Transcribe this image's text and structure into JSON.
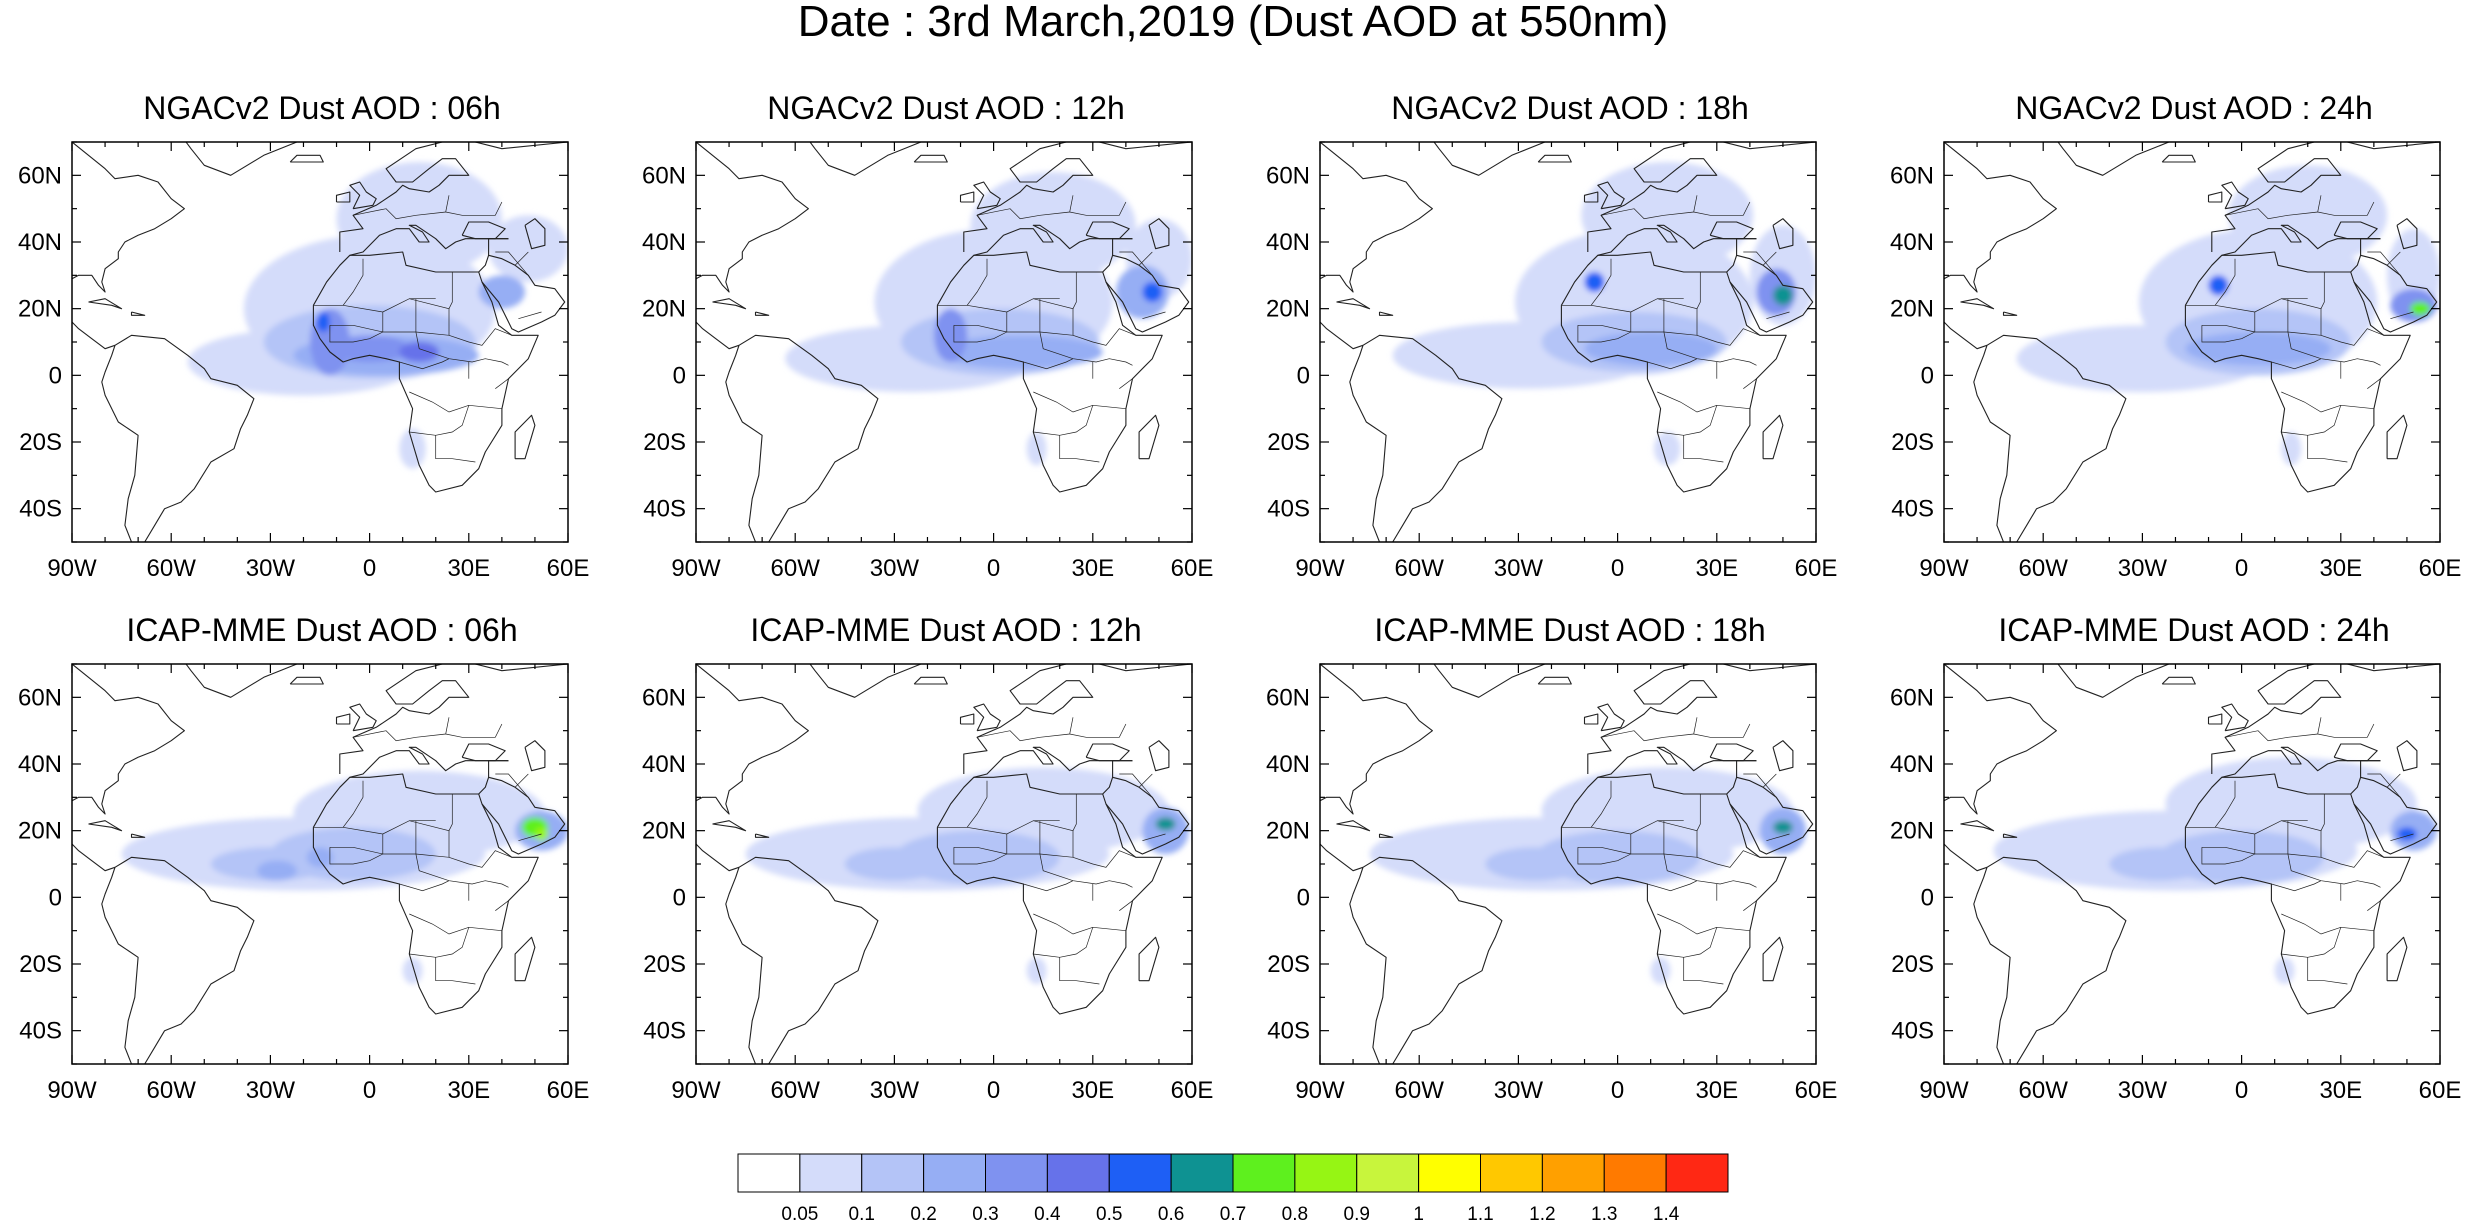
{
  "title": "Date : 3rd March,2019 (Dust AOD at 550nm)",
  "colors": {
    "land_outline": "#222222",
    "frame": "#000000"
  },
  "panels": [
    {
      "title": "NGACv2 Dust AOD : 06h",
      "model": "NGACv2",
      "hour": "06h",
      "plumes": [
        {
          "lon": -20,
          "lat": 4,
          "rx": 35,
          "ry": 10,
          "level": 1
        },
        {
          "lon": 0,
          "lat": 20,
          "rx": 38,
          "ry": 22,
          "level": 1
        },
        {
          "lon": 15,
          "lat": 47,
          "rx": 25,
          "ry": 17,
          "level": 1
        },
        {
          "lon": 48,
          "lat": 38,
          "rx": 12,
          "ry": 10,
          "level": 1
        },
        {
          "lon": -25,
          "lat": 11,
          "rx": 10,
          "ry": 4,
          "level": 1
        },
        {
          "lon": 0,
          "lat": 10,
          "rx": 32,
          "ry": 11,
          "level": 2
        },
        {
          "lon": 5,
          "lat": 6,
          "rx": 28,
          "ry": 6,
          "level": 3
        },
        {
          "lon": -12,
          "lat": 10,
          "rx": 6,
          "ry": 10,
          "level": 4
        },
        {
          "lon": 0,
          "lat": 8,
          "rx": 12,
          "ry": 4,
          "level": 4
        },
        {
          "lon": 15,
          "lat": 7,
          "rx": 6,
          "ry": 3,
          "level": 5
        },
        {
          "lon": -14,
          "lat": 16,
          "rx": 2,
          "ry": 3,
          "level": 6
        },
        {
          "lon": 40,
          "lat": 25,
          "rx": 7,
          "ry": 5,
          "level": 3
        },
        {
          "lon": 13,
          "lat": -22,
          "rx": 4,
          "ry": 6,
          "level": 1
        }
      ]
    },
    {
      "title": "NGACv2 Dust AOD : 12h",
      "model": "NGACv2",
      "hour": "12h",
      "plumes": [
        {
          "lon": -25,
          "lat": 5,
          "rx": 38,
          "ry": 10,
          "level": 1
        },
        {
          "lon": 0,
          "lat": 22,
          "rx": 36,
          "ry": 22,
          "level": 1
        },
        {
          "lon": 18,
          "lat": 45,
          "rx": 25,
          "ry": 16,
          "level": 1
        },
        {
          "lon": 50,
          "lat": 35,
          "rx": 10,
          "ry": 12,
          "level": 1
        },
        {
          "lon": 2,
          "lat": 10,
          "rx": 30,
          "ry": 10,
          "level": 2
        },
        {
          "lon": 8,
          "lat": 7,
          "rx": 25,
          "ry": 5,
          "level": 3
        },
        {
          "lon": -13,
          "lat": 12,
          "rx": 5,
          "ry": 8,
          "level": 4
        },
        {
          "lon": 45,
          "lat": 25,
          "rx": 8,
          "ry": 8,
          "level": 3
        },
        {
          "lon": 48,
          "lat": 25,
          "rx": 3,
          "ry": 3,
          "level": 6
        },
        {
          "lon": 13,
          "lat": -22,
          "rx": 3,
          "ry": 5,
          "level": 1
        }
      ]
    },
    {
      "title": "NGACv2 Dust AOD : 18h",
      "model": "NGACv2",
      "hour": "18h",
      "plumes": [
        {
          "lon": -28,
          "lat": 6,
          "rx": 40,
          "ry": 10,
          "level": 1
        },
        {
          "lon": 5,
          "lat": 22,
          "rx": 36,
          "ry": 22,
          "level": 1
        },
        {
          "lon": 15,
          "lat": 48,
          "rx": 26,
          "ry": 16,
          "level": 1
        },
        {
          "lon": 50,
          "lat": 30,
          "rx": 10,
          "ry": 15,
          "level": 1
        },
        {
          "lon": 5,
          "lat": 10,
          "rx": 28,
          "ry": 9,
          "level": 2
        },
        {
          "lon": 10,
          "lat": 8,
          "rx": 20,
          "ry": 5,
          "level": 3
        },
        {
          "lon": -7,
          "lat": 28,
          "rx": 3,
          "ry": 3,
          "level": 6
        },
        {
          "lon": 48,
          "lat": 25,
          "rx": 6,
          "ry": 7,
          "level": 4
        },
        {
          "lon": 50,
          "lat": 24,
          "rx": 3,
          "ry": 3,
          "level": 7
        },
        {
          "lon": 15,
          "lat": -22,
          "rx": 4,
          "ry": 5,
          "level": 1
        }
      ]
    },
    {
      "title": "NGACv2 Dust AOD : 24h",
      "model": "NGACv2",
      "hour": "24h",
      "plumes": [
        {
          "lon": -30,
          "lat": 5,
          "rx": 38,
          "ry": 10,
          "level": 1
        },
        {
          "lon": 5,
          "lat": 22,
          "rx": 36,
          "ry": 22,
          "level": 1
        },
        {
          "lon": 20,
          "lat": 48,
          "rx": 24,
          "ry": 15,
          "level": 1
        },
        {
          "lon": 52,
          "lat": 30,
          "rx": 8,
          "ry": 14,
          "level": 1
        },
        {
          "lon": 5,
          "lat": 10,
          "rx": 28,
          "ry": 10,
          "level": 2
        },
        {
          "lon": 5,
          "lat": 8,
          "rx": 22,
          "ry": 5,
          "level": 3
        },
        {
          "lon": -7,
          "lat": 27,
          "rx": 3,
          "ry": 3,
          "level": 6
        },
        {
          "lon": 52,
          "lat": 21,
          "rx": 7,
          "ry": 5,
          "level": 4
        },
        {
          "lon": 54,
          "lat": 20,
          "rx": 3,
          "ry": 2,
          "level": 8
        },
        {
          "lon": 15,
          "lat": -22,
          "rx": 3,
          "ry": 5,
          "level": 1
        }
      ]
    },
    {
      "title": "ICAP-MME Dust AOD : 06h",
      "model": "ICAP-MME",
      "hour": "06h",
      "plumes": [
        {
          "lon": -20,
          "lat": 13,
          "rx": 55,
          "ry": 11,
          "level": 1
        },
        {
          "lon": 15,
          "lat": 25,
          "rx": 38,
          "ry": 13,
          "level": 1
        },
        {
          "lon": -30,
          "lat": 10,
          "rx": 18,
          "ry": 5,
          "level": 2
        },
        {
          "lon": -5,
          "lat": 13,
          "rx": 25,
          "ry": 8,
          "level": 2
        },
        {
          "lon": -28,
          "lat": 8,
          "rx": 6,
          "ry": 3,
          "level": 3
        },
        {
          "lon": -15,
          "lat": 12,
          "rx": 4,
          "ry": 3,
          "level": 3
        },
        {
          "lon": 52,
          "lat": 20,
          "rx": 8,
          "ry": 6,
          "level": 3
        },
        {
          "lon": 50,
          "lat": 21,
          "rx": 4,
          "ry": 3,
          "level": 8
        },
        {
          "lon": 52,
          "lat": 19,
          "rx": 2,
          "ry": 2,
          "level": 9
        },
        {
          "lon": 13,
          "lat": -22,
          "rx": 3,
          "ry": 4,
          "level": 1
        }
      ]
    },
    {
      "title": "ICAP-MME Dust AOD : 12h",
      "model": "ICAP-MME",
      "hour": "12h",
      "plumes": [
        {
          "lon": -20,
          "lat": 13,
          "rx": 55,
          "ry": 11,
          "level": 1
        },
        {
          "lon": 15,
          "lat": 26,
          "rx": 38,
          "ry": 13,
          "level": 1
        },
        {
          "lon": -30,
          "lat": 10,
          "rx": 15,
          "ry": 5,
          "level": 2
        },
        {
          "lon": -5,
          "lat": 12,
          "rx": 25,
          "ry": 8,
          "level": 2
        },
        {
          "lon": 52,
          "lat": 20,
          "rx": 7,
          "ry": 7,
          "level": 3
        },
        {
          "lon": 52,
          "lat": 22,
          "rx": 3,
          "ry": 2,
          "level": 7
        },
        {
          "lon": 13,
          "lat": -22,
          "rx": 3,
          "ry": 4,
          "level": 1
        }
      ]
    },
    {
      "title": "ICAP-MME Dust AOD : 18h",
      "model": "ICAP-MME",
      "hour": "18h",
      "plumes": [
        {
          "lon": -20,
          "lat": 13,
          "rx": 55,
          "ry": 11,
          "level": 1
        },
        {
          "lon": 15,
          "lat": 26,
          "rx": 38,
          "ry": 13,
          "level": 1
        },
        {
          "lon": -25,
          "lat": 10,
          "rx": 15,
          "ry": 5,
          "level": 2
        },
        {
          "lon": 0,
          "lat": 12,
          "rx": 25,
          "ry": 8,
          "level": 2
        },
        {
          "lon": 50,
          "lat": 20,
          "rx": 7,
          "ry": 7,
          "level": 3
        },
        {
          "lon": 50,
          "lat": 21,
          "rx": 3,
          "ry": 2,
          "level": 7
        },
        {
          "lon": 13,
          "lat": -22,
          "rx": 3,
          "ry": 4,
          "level": 1
        }
      ]
    },
    {
      "title": "ICAP-MME Dust AOD : 24h",
      "model": "ICAP-MME",
      "hour": "24h",
      "plumes": [
        {
          "lon": -20,
          "lat": 14,
          "rx": 55,
          "ry": 12,
          "level": 1
        },
        {
          "lon": 15,
          "lat": 28,
          "rx": 38,
          "ry": 14,
          "level": 1
        },
        {
          "lon": -25,
          "lat": 10,
          "rx": 15,
          "ry": 5,
          "level": 2
        },
        {
          "lon": 0,
          "lat": 12,
          "rx": 25,
          "ry": 8,
          "level": 2
        },
        {
          "lon": 52,
          "lat": 20,
          "rx": 7,
          "ry": 6,
          "level": 3
        },
        {
          "lon": 50,
          "lat": 19,
          "rx": 3,
          "ry": 2,
          "level": 6
        },
        {
          "lon": 13,
          "lat": -22,
          "rx": 3,
          "ry": 4,
          "level": 1
        }
      ]
    }
  ],
  "axes": {
    "lat_ticks": [
      "60N",
      "40N",
      "20N",
      "0",
      "20S",
      "40S"
    ],
    "lat_values": [
      60,
      40,
      20,
      0,
      -20,
      -40
    ],
    "lon_ticks": [
      "90W",
      "60W",
      "30W",
      "0",
      "30E",
      "60E"
    ],
    "lon_values": [
      -90,
      -60,
      -30,
      0,
      30,
      60
    ],
    "lon_range": [
      -90,
      60
    ],
    "lat_range": [
      -50,
      70
    ]
  },
  "colorbar": {
    "labels": [
      "0.05",
      "0.1",
      "0.2",
      "0.3",
      "0.4",
      "0.5",
      "0.6",
      "0.7",
      "0.8",
      "0.9",
      "1",
      "1.1",
      "1.2",
      "1.3",
      "1.4"
    ],
    "colors": [
      "#ffffff",
      "#d4dcfa",
      "#b4c4f7",
      "#96aef4",
      "#7f92f0",
      "#6672ea",
      "#1e5ff5",
      "#0e9292",
      "#5ef01e",
      "#96f514",
      "#c8f53c",
      "#ffff00",
      "#ffc800",
      "#ffa000",
      "#ff7a00",
      "#ff2814"
    ]
  }
}
